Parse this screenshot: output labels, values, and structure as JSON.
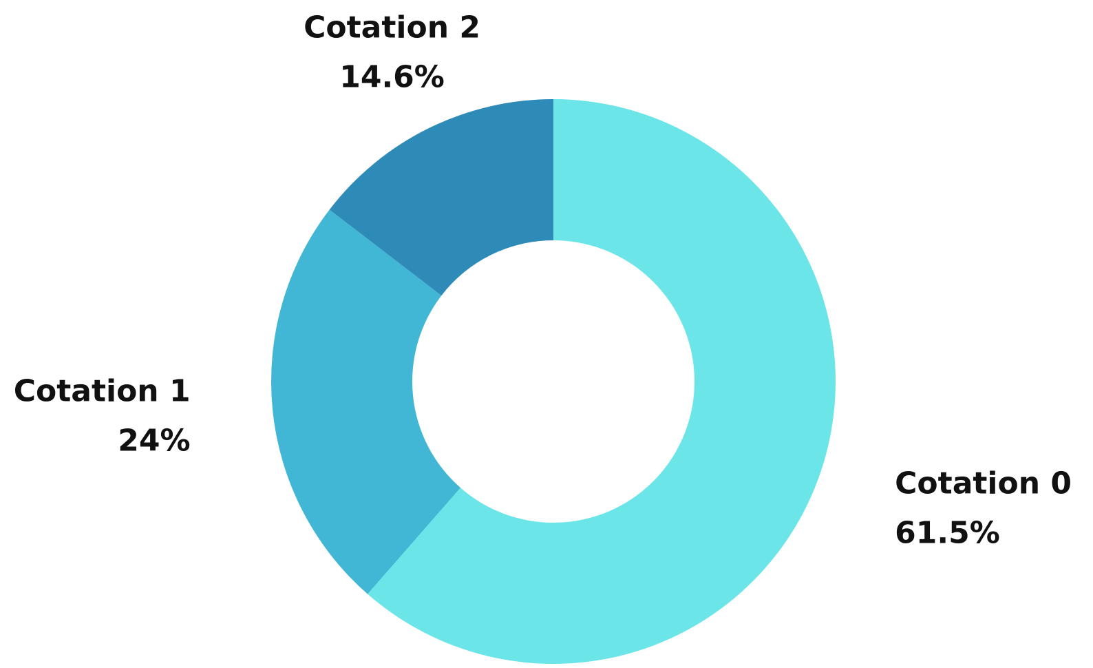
{
  "chart_data": {
    "type": "donut",
    "categories": [
      "Cotation 0",
      "Cotation 1",
      "Cotation 2"
    ],
    "values": [
      61.5,
      24,
      14.6
    ],
    "value_labels": [
      "61.5%",
      "24%",
      "14.6%"
    ],
    "colors": [
      "#6ce5e8",
      "#42b7d5",
      "#2e8bb8"
    ]
  }
}
